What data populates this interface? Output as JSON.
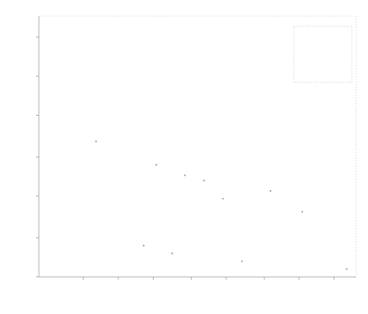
{
  "chart_data": {
    "type": "scatter",
    "title": "",
    "xlabel": "",
    "ylabel": "",
    "x_ticks": [],
    "y_ticks": [],
    "legend": {
      "position": "top-right",
      "entries": []
    },
    "grid": false,
    "x_range": [
      0,
      100
    ],
    "y_range": [
      0,
      100
    ],
    "series": [
      {
        "points": [
          [
            18,
            52
          ],
          [
            37,
            43
          ],
          [
            46,
            39
          ],
          [
            52,
            37
          ],
          [
            73,
            33
          ],
          [
            58,
            30
          ],
          [
            83,
            25
          ],
          [
            33,
            12
          ],
          [
            42,
            9
          ],
          [
            64,
            6
          ],
          [
            97,
            3
          ]
        ]
      }
    ]
  }
}
